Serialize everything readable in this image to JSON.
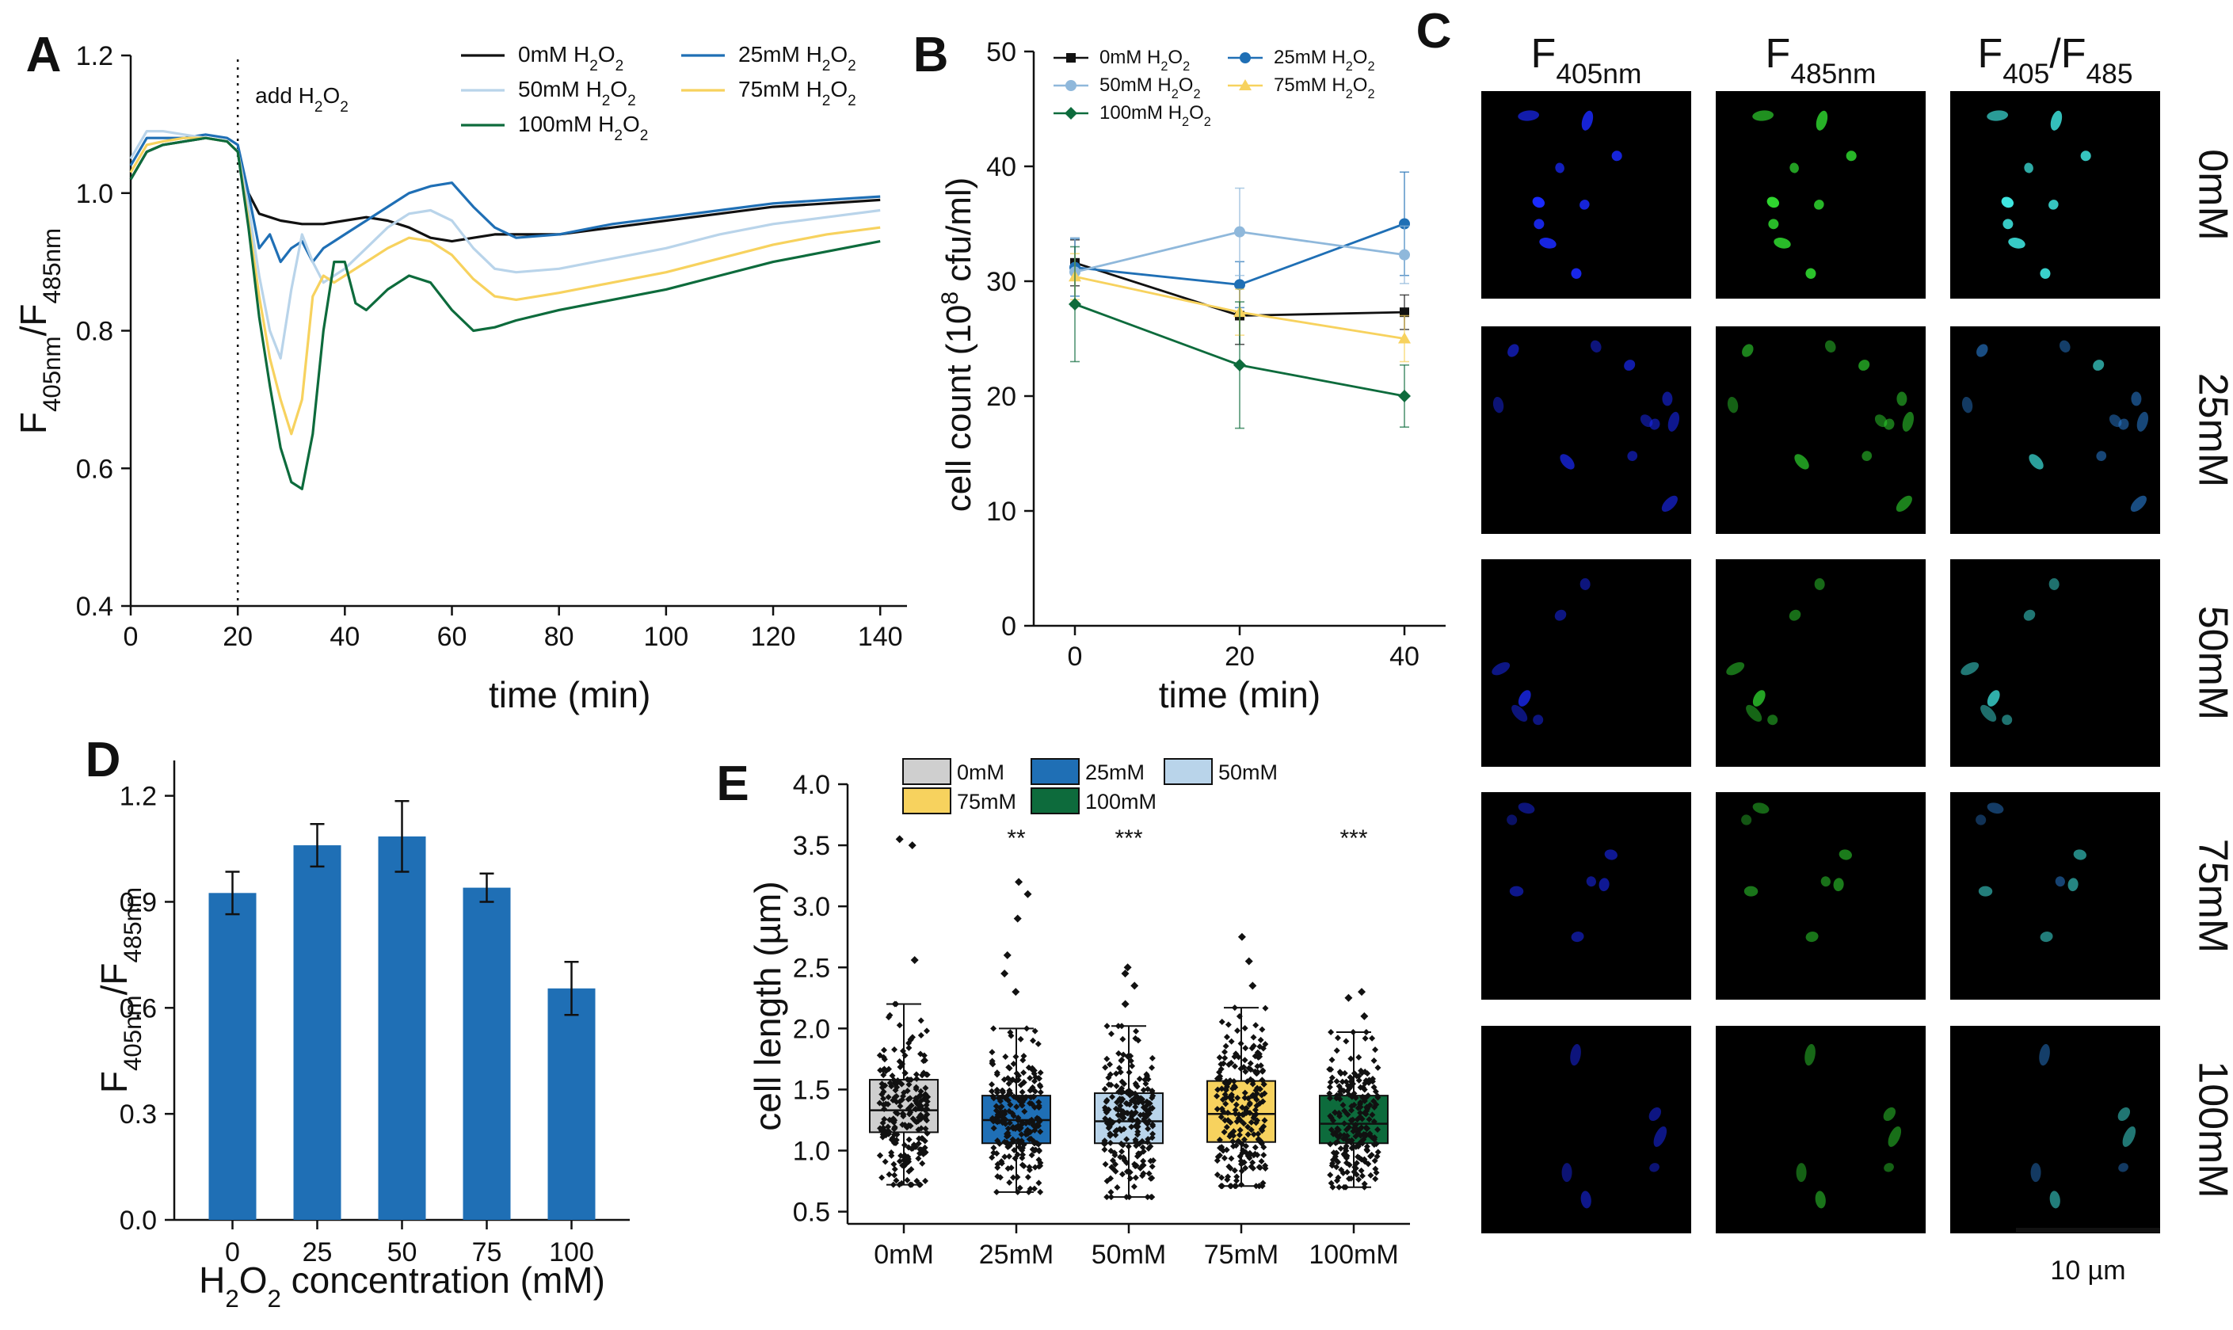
{
  "panels": {
    "A": "A",
    "B": "B",
    "C": "C",
    "D": "D",
    "E": "E"
  },
  "chart_data": [
    {
      "id": "A",
      "type": "line",
      "title": "",
      "xlabel": "time (min)",
      "ylabel_main": "F",
      "ylabel_sub1": "405nm",
      "ylabel_mid": "/F",
      "ylabel_sub2": "485nm",
      "xlim": [
        0,
        145
      ],
      "ylim": [
        0.4,
        1.2
      ],
      "xticks": [
        "0",
        "20",
        "40",
        "60",
        "80",
        "100",
        "120",
        "140"
      ],
      "yticks": [
        "0.4",
        "0.6",
        "0.8",
        "1.0",
        "1.2"
      ],
      "annotation": {
        "text": "add H",
        "sub": "2",
        "tail": "O",
        "sub2": "2",
        "x": 20
      },
      "colors": [
        "#111111",
        "#1f6fb5",
        "#b9d4ea",
        "#f7d25e",
        "#0d6b3c"
      ],
      "legend_labels": [
        {
          "main": "0mM H",
          "s1": "2",
          "m2": "O",
          "s2": "2"
        },
        {
          "main": "25mM  H",
          "s1": "2",
          "m2": "O",
          "s2": "2"
        },
        {
          "main": "50mM H",
          "s1": "2",
          "m2": "O",
          "s2": "2"
        },
        {
          "main": "75mM  H",
          "s1": "2",
          "m2": "O",
          "s2": "2"
        },
        {
          "main": "100mM H",
          "s1": "2",
          "m2": "O",
          "s2": "2"
        }
      ],
      "series": [
        {
          "name": "0mM H2O2",
          "x": [
            0,
            3,
            6,
            10,
            14,
            18,
            20,
            22,
            24,
            28,
            32,
            36,
            40,
            44,
            48,
            52,
            56,
            60,
            64,
            68,
            72,
            80,
            90,
            100,
            110,
            120,
            130,
            140
          ],
          "y": [
            1.02,
            1.06,
            1.07,
            1.075,
            1.08,
            1.075,
            1.06,
            1.0,
            0.97,
            0.96,
            0.955,
            0.955,
            0.96,
            0.965,
            0.96,
            0.95,
            0.935,
            0.93,
            0.935,
            0.94,
            0.94,
            0.94,
            0.95,
            0.96,
            0.97,
            0.98,
            0.985,
            0.99
          ]
        },
        {
          "name": "25mM H2O2",
          "x": [
            0,
            3,
            6,
            10,
            14,
            18,
            20,
            22,
            24,
            26,
            28,
            30,
            32,
            34,
            36,
            38,
            40,
            44,
            48,
            52,
            56,
            60,
            64,
            68,
            72,
            80,
            90,
            100,
            110,
            120,
            130,
            140
          ],
          "y": [
            1.04,
            1.08,
            1.08,
            1.08,
            1.085,
            1.08,
            1.07,
            1.0,
            0.92,
            0.94,
            0.9,
            0.92,
            0.93,
            0.9,
            0.92,
            0.93,
            0.94,
            0.96,
            0.98,
            1.0,
            1.01,
            1.015,
            0.98,
            0.95,
            0.935,
            0.94,
            0.955,
            0.965,
            0.975,
            0.985,
            0.99,
            0.995
          ]
        },
        {
          "name": "50mM H2O2",
          "x": [
            0,
            3,
            6,
            10,
            14,
            18,
            20,
            22,
            24,
            26,
            28,
            30,
            32,
            34,
            36,
            38,
            40,
            44,
            48,
            52,
            56,
            60,
            64,
            68,
            72,
            80,
            90,
            100,
            110,
            120,
            130,
            140
          ],
          "y": [
            1.05,
            1.09,
            1.09,
            1.085,
            1.08,
            1.075,
            1.06,
            0.98,
            0.88,
            0.8,
            0.76,
            0.86,
            0.94,
            0.9,
            0.87,
            0.88,
            0.89,
            0.92,
            0.95,
            0.97,
            0.975,
            0.96,
            0.92,
            0.89,
            0.885,
            0.89,
            0.905,
            0.92,
            0.94,
            0.955,
            0.965,
            0.975
          ]
        },
        {
          "name": "75mM H2O2",
          "x": [
            0,
            3,
            6,
            10,
            14,
            18,
            20,
            22,
            24,
            26,
            28,
            30,
            32,
            34,
            36,
            38,
            40,
            44,
            48,
            52,
            56,
            60,
            64,
            68,
            72,
            80,
            90,
            100,
            110,
            120,
            130,
            140
          ],
          "y": [
            1.03,
            1.07,
            1.075,
            1.08,
            1.08,
            1.075,
            1.06,
            0.96,
            0.85,
            0.76,
            0.7,
            0.65,
            0.7,
            0.85,
            0.88,
            0.87,
            0.88,
            0.9,
            0.92,
            0.935,
            0.93,
            0.91,
            0.875,
            0.85,
            0.845,
            0.855,
            0.87,
            0.885,
            0.905,
            0.925,
            0.94,
            0.95
          ]
        },
        {
          "name": "100mM H2O2",
          "x": [
            0,
            3,
            6,
            10,
            14,
            18,
            20,
            22,
            24,
            26,
            28,
            30,
            32,
            34,
            36,
            38,
            40,
            42,
            44,
            48,
            52,
            56,
            60,
            64,
            68,
            72,
            80,
            90,
            100,
            110,
            120,
            130,
            140
          ],
          "y": [
            1.02,
            1.06,
            1.07,
            1.075,
            1.08,
            1.075,
            1.06,
            0.95,
            0.82,
            0.72,
            0.63,
            0.58,
            0.57,
            0.65,
            0.8,
            0.9,
            0.9,
            0.84,
            0.83,
            0.86,
            0.88,
            0.87,
            0.83,
            0.8,
            0.805,
            0.815,
            0.83,
            0.845,
            0.86,
            0.88,
            0.9,
            0.915,
            0.93
          ]
        }
      ]
    },
    {
      "id": "B",
      "type": "line",
      "title": "",
      "xlabel": "time (min)",
      "ylabel_main": "cell count (10",
      "ylabel_sup": "8",
      "ylabel_tail": " cfu/ml)",
      "x": [
        0,
        20,
        40
      ],
      "xlim": [
        -5,
        45
      ],
      "ylim": [
        0,
        50
      ],
      "xticks": [
        "0",
        "20",
        "40"
      ],
      "yticks": [
        "0",
        "10",
        "20",
        "30",
        "40",
        "50"
      ],
      "colors": [
        "#111111",
        "#1f6fb5",
        "#8fb8db",
        "#f7d25e",
        "#0d6b3c"
      ],
      "markers": [
        "square",
        "circle",
        "circle",
        "triangle",
        "diamond"
      ],
      "legend_labels": [
        {
          "main": "0mM H",
          "s1": "2",
          "m2": "O",
          "s2": "2"
        },
        {
          "main": "25mM H",
          "s1": "2",
          "m2": "O",
          "s2": "2"
        },
        {
          "main": "50mM H",
          "s1": "2",
          "m2": "O",
          "s2": "2"
        },
        {
          "main": "75mM H",
          "s1": "2",
          "m2": "O",
          "s2": "2"
        },
        {
          "main": "100mM H",
          "s1": "2",
          "m2": "O",
          "s2": "2"
        }
      ],
      "series": [
        {
          "name": "0mM H2O2",
          "values": [
            31.6,
            27.0,
            27.3
          ],
          "err": [
            2.0,
            2.5,
            1.5
          ]
        },
        {
          "name": "25mM H2O2",
          "values": [
            31.2,
            29.7,
            35.0
          ],
          "err": [
            2.5,
            2.0,
            4.5
          ]
        },
        {
          "name": "50mM H2O2",
          "values": [
            30.8,
            34.3,
            32.3
          ],
          "err": [
            3.0,
            3.8,
            2.5
          ]
        },
        {
          "name": "75mM H2O2",
          "values": [
            30.4,
            27.3,
            25.0
          ],
          "err": [
            2.0,
            2.0,
            2.0
          ]
        },
        {
          "name": "100mM H2O2",
          "values": [
            28.0,
            22.7,
            20.0
          ],
          "err": [
            5.0,
            5.5,
            2.7
          ]
        }
      ]
    },
    {
      "id": "C",
      "type": "table",
      "columns": [
        {
          "main": "F",
          "sub": "405nm"
        },
        {
          "main": "F",
          "sub": "485nm"
        },
        {
          "main": "F",
          "sub": "405",
          "mid": "/F",
          "sub2": "485"
        }
      ],
      "rows": [
        "0mM",
        "25mM",
        "50mM",
        "75mM",
        "100mM"
      ],
      "scalebar": "10 µm",
      "colors": {
        "c405": "#1a2aff",
        "c485": "#2fd62f",
        "ratio_bright": "#3fe6e0",
        "ratio_dim": "#2a7fd8"
      }
    },
    {
      "id": "D",
      "type": "bar",
      "title": "",
      "xlabel_main": "H",
      "xlabel_s1": "2",
      "xlabel_m2": "O",
      "xlabel_s2": "2",
      "xlabel_tail": " concentration (mM)",
      "ylabel_main": "F",
      "ylabel_sub1": "405nm",
      "ylabel_mid": "/F",
      "ylabel_sub2": "485nm",
      "categories": [
        "0",
        "25",
        "50",
        "75",
        "100"
      ],
      "values": [
        0.925,
        1.06,
        1.085,
        0.94,
        0.655
      ],
      "err": [
        0.06,
        0.06,
        0.1,
        0.04,
        0.075
      ],
      "ylim": [
        0,
        1.3
      ],
      "yticks": [
        "0.0",
        "0.3",
        "0.6",
        "0.9",
        "1.2"
      ],
      "color": "#1f6fb5"
    },
    {
      "id": "E",
      "type": "box",
      "title": "",
      "ylabel": "cell length (µm)",
      "categories": [
        "0mM",
        "25mM",
        "50mM",
        "75mM",
        "100mM"
      ],
      "ylim": [
        0.4,
        4.0
      ],
      "yticks": [
        "0.5",
        "1.0",
        "1.5",
        "2.0",
        "2.5",
        "3.0",
        "3.5",
        "4.0"
      ],
      "colors": [
        "#cfcfcf",
        "#1f6fb5",
        "#b9d4ea",
        "#f7d25e",
        "#0d6b3c"
      ],
      "legend": [
        "0mM",
        "25mM",
        "50mM",
        "75mM",
        "100mM"
      ],
      "significance": [
        "",
        "**",
        "***",
        "",
        "***"
      ],
      "boxes": [
        {
          "q1": 1.15,
          "median": 1.33,
          "q3": 1.58,
          "whisker_low": 0.72,
          "whisker_high": 2.2,
          "outliers": [
            2.56,
            3.5,
            3.55
          ]
        },
        {
          "q1": 1.06,
          "median": 1.25,
          "q3": 1.45,
          "whisker_low": 0.66,
          "whisker_high": 2.0,
          "outliers": [
            2.3,
            2.45,
            2.6,
            2.9,
            3.1,
            3.2
          ]
        },
        {
          "q1": 1.06,
          "median": 1.24,
          "q3": 1.47,
          "whisker_low": 0.62,
          "whisker_high": 2.02,
          "outliers": [
            2.2,
            2.35,
            2.45,
            2.5
          ]
        },
        {
          "q1": 1.07,
          "median": 1.3,
          "q3": 1.57,
          "whisker_low": 0.71,
          "whisker_high": 2.17,
          "outliers": [
            2.35,
            2.55,
            2.75
          ]
        },
        {
          "q1": 1.06,
          "median": 1.22,
          "q3": 1.45,
          "whisker_low": 0.7,
          "whisker_high": 1.97,
          "outliers": [
            2.1,
            2.25,
            2.3
          ]
        }
      ]
    }
  ]
}
